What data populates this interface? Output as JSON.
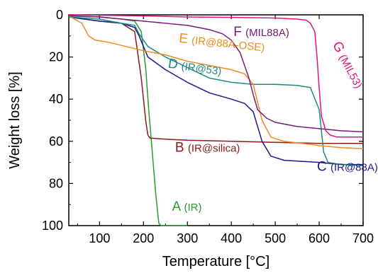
{
  "chart_data": {
    "type": "line",
    "xlabel": "Temperature [°C]",
    "ylabel": "Weight loss [%]",
    "xlim": [
      30,
      700
    ],
    "ylim": [
      0,
      100
    ],
    "y_inverted": true,
    "xticks": [
      100,
      200,
      300,
      400,
      500,
      600,
      700
    ],
    "yticks": [
      0,
      20,
      40,
      60,
      80,
      100
    ],
    "grid": false,
    "series": [
      {
        "label_letter": "A",
        "label_text": "(IR)",
        "color": "#2e9a2e",
        "x": [
          30,
          100,
          150,
          180,
          195,
          205,
          212,
          220,
          228,
          235,
          240,
          260,
          300
        ],
        "y": [
          0.5,
          1,
          2,
          3,
          8,
          25,
          45,
          65,
          85,
          99,
          100,
          100,
          100
        ],
        "label_pos": {
          "x": 265,
          "y": 93
        }
      },
      {
        "label_letter": "B",
        "label_text": "(IR@silica)",
        "color": "#8b1a1a",
        "x": [
          30,
          100,
          150,
          180,
          195,
          205,
          210,
          215,
          250,
          300,
          400,
          500,
          600,
          700
        ],
        "y": [
          1,
          3,
          4,
          8,
          30,
          50,
          57,
          58.5,
          59,
          59.5,
          60,
          60.5,
          61,
          61
        ],
        "label_pos": {
          "x": 272,
          "y": 65
        }
      },
      {
        "label_letter": "C",
        "label_text": "(IR@88A)",
        "color": "#1a1a8c",
        "x": [
          30,
          100,
          150,
          180,
          190,
          210,
          250,
          300,
          350,
          400,
          430,
          450,
          470,
          490,
          520,
          600,
          650,
          700
        ],
        "y": [
          1,
          3,
          4,
          6,
          10,
          20,
          26,
          32,
          37,
          40,
          42,
          46,
          60,
          67,
          69,
          70,
          71,
          71
        ],
        "label_pos": {
          "x": 595,
          "y": 74
        }
      },
      {
        "label_letter": "D",
        "label_text": "(IR@53)",
        "color": "#1a8a82",
        "x": [
          30,
          100,
          150,
          180,
          190,
          210,
          250,
          300,
          350,
          400,
          450,
          500,
          550,
          580,
          600,
          610,
          620,
          650,
          700
        ],
        "y": [
          1,
          2,
          4,
          5,
          9,
          15,
          20,
          25,
          30,
          32,
          33,
          33,
          33.5,
          34.5,
          45,
          65,
          70,
          71,
          71.5
        ],
        "label_pos": {
          "x": 255,
          "y": 25
        }
      },
      {
        "label_letter": "E",
        "label_text": "(IR@88A-OSE)",
        "color": "#f08b1e",
        "x": [
          30,
          60,
          75,
          90,
          120,
          160,
          200,
          250,
          300,
          350,
          400,
          430,
          450,
          470,
          490,
          520,
          600,
          650,
          700
        ],
        "y": [
          0.5,
          4,
          10,
          12,
          13,
          15,
          17,
          19,
          22,
          24,
          26,
          28,
          33,
          50,
          58,
          60,
          62,
          63,
          63.5
        ],
        "label_pos": {
          "x": 280,
          "y": 13
        }
      },
      {
        "label_letter": "F",
        "label_text": "(MIL88A)",
        "color": "#7a1a7a",
        "x": [
          30,
          100,
          200,
          300,
          350,
          380,
          400,
          420,
          440,
          450,
          460,
          480,
          500,
          550,
          600,
          650,
          700
        ],
        "y": [
          0.5,
          1,
          3,
          5,
          7,
          9,
          12,
          18,
          30,
          38,
          45,
          49,
          51,
          53,
          54,
          55,
          55.5
        ],
        "label_pos": {
          "x": 405,
          "y": 10
        }
      },
      {
        "label_letter": "G",
        "label_text": "(MIL53)",
        "color": "#e0127d",
        "x": [
          30,
          200,
          300,
          400,
          500,
          550,
          570,
          580,
          590,
          595,
          600,
          605,
          615,
          625,
          640,
          660,
          700
        ],
        "y": [
          0,
          0.5,
          1,
          1.2,
          1.5,
          2,
          2.5,
          4,
          8,
          20,
          35,
          48,
          55,
          57,
          58,
          58,
          58
        ],
        "label_pos": {
          "x": 630,
          "y": 14
        }
      }
    ]
  }
}
